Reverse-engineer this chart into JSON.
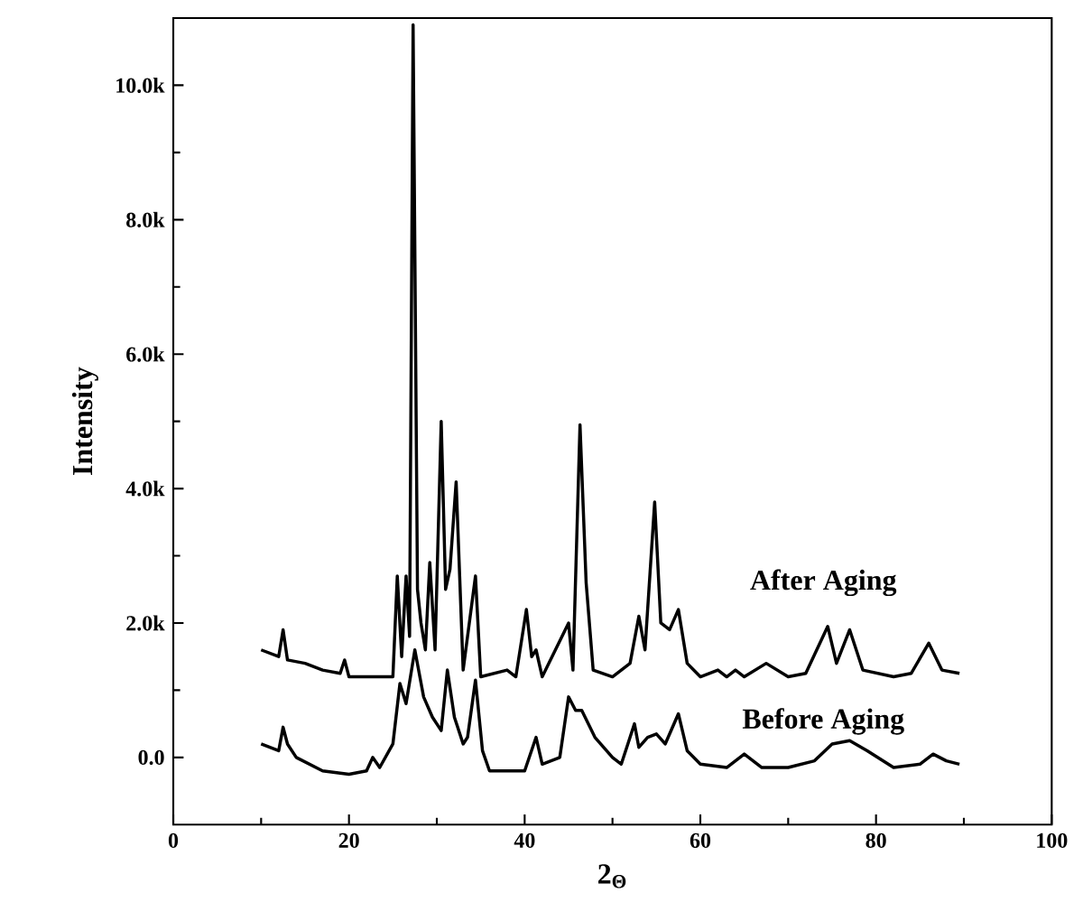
{
  "chart_data": {
    "type": "line",
    "xlabel": "2$_{Θ}$",
    "ylabel": "Intensity",
    "xlim": [
      0,
      100
    ],
    "xticks": [
      0,
      20,
      40,
      60,
      80,
      100
    ],
    "ylim": [
      -1000,
      11000
    ],
    "yticks": [
      {
        "value": 0,
        "label": "0.0"
      },
      {
        "value": 2000,
        "label": "2.0k"
      },
      {
        "value": 4000,
        "label": "4.0k"
      },
      {
        "value": 6000,
        "label": "6.0k"
      },
      {
        "value": 8000,
        "label": "8.0k"
      },
      {
        "value": 10000,
        "label": "10.0k"
      }
    ],
    "grid": false,
    "legend": false,
    "marker": "none",
    "line_style": "solid",
    "series": [
      {
        "name": "After Aging",
        "color": "#000000",
        "x": [
          10,
          11,
          12,
          12.5,
          13,
          15,
          17,
          19,
          19.5,
          20,
          22,
          25,
          25.5,
          26,
          26.5,
          26.9,
          27.3,
          27.8,
          28.2,
          28.7,
          29.2,
          29.8,
          30.5,
          31,
          31.5,
          32.2,
          33,
          34.4,
          35,
          38,
          39,
          40.2,
          40.8,
          41.3,
          42,
          45,
          45.5,
          46.3,
          47,
          47.8,
          50,
          52,
          53,
          53.7,
          54.8,
          55.5,
          56.5,
          57.5,
          58.5,
          60,
          62,
          63,
          64,
          65,
          67.5,
          70,
          72,
          74.5,
          75.5,
          77,
          78.5,
          82,
          84,
          86,
          87.5,
          89.5
        ],
        "values": [
          1600,
          1550,
          1500,
          1900,
          1450,
          1400,
          1300,
          1250,
          1450,
          1200,
          1200,
          1200,
          2700,
          1500,
          2700,
          1800,
          10900,
          2500,
          2000,
          1600,
          2900,
          1600,
          5000,
          2500,
          2800,
          4100,
          1300,
          2700,
          1200,
          1300,
          1200,
          2200,
          1500,
          1600,
          1200,
          2000,
          1300,
          4950,
          2600,
          1300,
          1200,
          1400,
          2100,
          1600,
          3800,
          2000,
          1900,
          2200,
          1400,
          1200,
          1300,
          1200,
          1300,
          1200,
          1400,
          1200,
          1250,
          1950,
          1400,
          1900,
          1300,
          1200,
          1250,
          1700,
          1300,
          1250
        ]
      },
      {
        "name": "Before Aging",
        "color": "#000000",
        "x": [
          10,
          11,
          12,
          12.5,
          13,
          14,
          17,
          20,
          22,
          22.7,
          23.5,
          25,
          25.8,
          26.5,
          27.5,
          28.5,
          29.5,
          30.5,
          31.2,
          32,
          33,
          33.5,
          34.4,
          35.2,
          36,
          40,
          41.3,
          42,
          44,
          45,
          45.8,
          46.5,
          48,
          50,
          51,
          52,
          52.5,
          53,
          54,
          55,
          56,
          57.5,
          58.5,
          60,
          63,
          65,
          67,
          70,
          73,
          75,
          77,
          79,
          82,
          85,
          86.5,
          88,
          89.5
        ],
        "values": [
          200,
          150,
          100,
          450,
          200,
          0,
          -200,
          -250,
          -200,
          0,
          -150,
          200,
          1100,
          800,
          1600,
          900,
          600,
          400,
          1300,
          600,
          200,
          300,
          1150,
          100,
          -200,
          -200,
          300,
          -100,
          0,
          900,
          700,
          700,
          300,
          0,
          -100,
          300,
          500,
          150,
          300,
          350,
          200,
          650,
          100,
          -100,
          -150,
          50,
          -150,
          -150,
          -50,
          200,
          250,
          100,
          -150,
          -100,
          50,
          -50,
          -100
        ]
      }
    ]
  }
}
